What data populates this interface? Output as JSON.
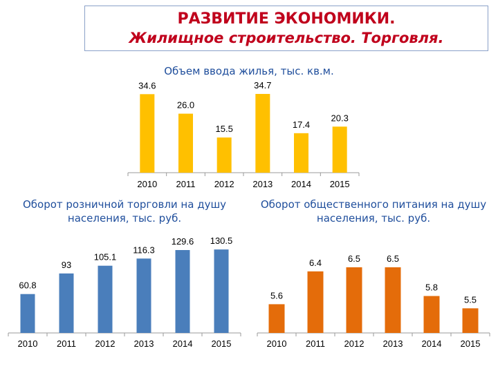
{
  "header": {
    "title": "РАЗВИТИЕ ЭКОНОМИКИ.",
    "subtitle": "Жилищное строительство. Торговля."
  },
  "chart_data": [
    {
      "type": "bar",
      "title": "Объем ввода жилья, тыс. кв.м.",
      "categories": [
        "2010",
        "2011",
        "2012",
        "2013",
        "2014",
        "2015"
      ],
      "values": [
        34.6,
        26.0,
        15.5,
        34.7,
        17.4,
        20.3
      ],
      "value_labels": [
        "34.6",
        "26.0",
        "15.5",
        "34.7",
        "17.4",
        "20.3"
      ],
      "color": "#ffc000",
      "ylim": [
        0,
        35
      ]
    },
    {
      "type": "bar",
      "title": "Оборот розничной торговли на душу населения, тыс. руб.",
      "categories": [
        "2010",
        "2011",
        "2012",
        "2013",
        "2014",
        "2015"
      ],
      "values": [
        60.8,
        93,
        105.1,
        116.3,
        129.6,
        130.5
      ],
      "value_labels": [
        "60.8",
        "93",
        "105.1",
        "116.3",
        "129.6",
        "130.5"
      ],
      "color": "#4a7ebb",
      "ylim": [
        0,
        135
      ]
    },
    {
      "type": "bar",
      "title": "Оборот общественного питания на душу населения, тыс. руб.",
      "categories": [
        "2010",
        "2011",
        "2012",
        "2013",
        "2014",
        "2015"
      ],
      "values": [
        5.6,
        6.4,
        6.5,
        6.5,
        5.8,
        5.5
      ],
      "value_labels": [
        "5.6",
        "6.4",
        "6.5",
        "6.5",
        "5.8",
        "5.5"
      ],
      "color": "#e46c0a",
      "ylim": [
        4.9,
        6.6
      ]
    }
  ]
}
